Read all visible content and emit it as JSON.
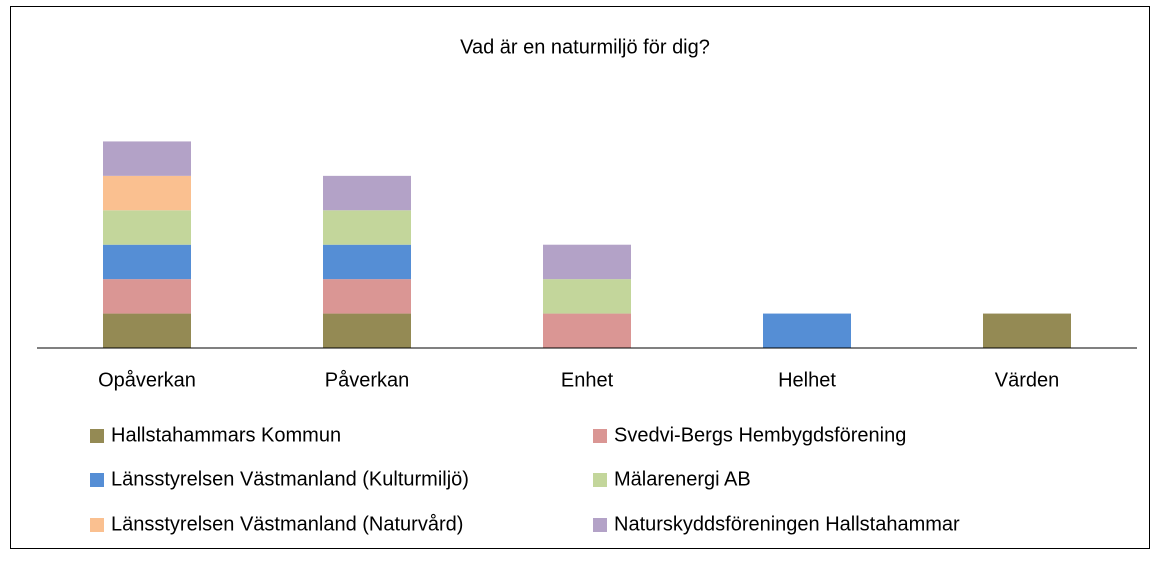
{
  "chart_data": {
    "type": "stacked_bar",
    "title": "Vad är en naturmiljö för dig?",
    "categories": [
      "Opåverkan",
      "Påverkan",
      "Enhet",
      "Helhet",
      "Värden"
    ],
    "ylim": [
      0,
      7
    ],
    "series": [
      {
        "name": "Hallstahammars Kommun",
        "color": "#948A54",
        "values": [
          1,
          1,
          0,
          0,
          1
        ]
      },
      {
        "name": "Svedvi-Bergs Hembygdsförening",
        "color": "#DA9694",
        "values": [
          1,
          1,
          1,
          0,
          0
        ]
      },
      {
        "name": "Länsstyrelsen Västmanland (Kulturmiljö)",
        "color": "#558ED5",
        "values": [
          1,
          1,
          0,
          1,
          0
        ]
      },
      {
        "name": "Mälarenergi AB",
        "color": "#C3D69B",
        "values": [
          1,
          1,
          1,
          0,
          0
        ]
      },
      {
        "name": "Länsstyrelsen Västmanland (Naturvård)",
        "color": "#FAC090",
        "values": [
          1,
          0,
          0,
          0,
          0
        ]
      },
      {
        "name": "Naturskyddsföreningen Hallstahammar",
        "color": "#B3A2C7",
        "values": [
          1,
          1,
          1,
          0,
          0
        ]
      }
    ]
  }
}
